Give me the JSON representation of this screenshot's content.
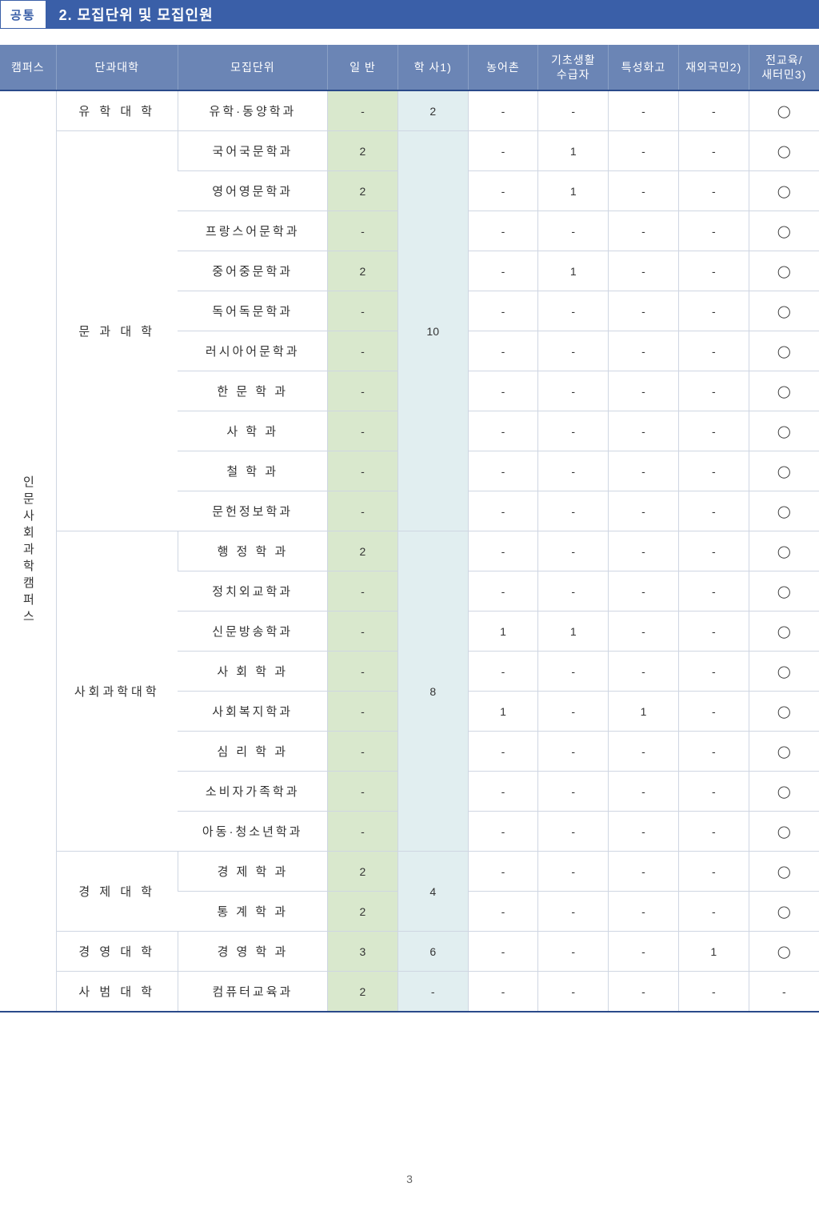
{
  "header": {
    "badge": "공통",
    "title": "2. 모집단위 및 모집인원"
  },
  "columns": [
    "캠퍼스",
    "단과대학",
    "모집단위",
    "일 반",
    "학 사1)",
    "농어촌",
    "기초생활\n수급자",
    "특성화고",
    "재외국민2)",
    "전교육/\n새터민3)"
  ],
  "campus": "인문사회과학캠퍼스",
  "colleges": [
    {
      "name": "유 학 대 학",
      "rowspan": 1,
      "depts": [
        {
          "name": "유학·동양학과",
          "general": "-",
          "haksa": "2",
          "haksa_span": 1,
          "rural": "-",
          "basic": "-",
          "spec": "-",
          "overseas": "-",
          "edu": "◯"
        }
      ]
    },
    {
      "name": "문 과 대 학",
      "rowspan": 10,
      "depts": [
        {
          "name": "국어국문학과",
          "general": "2",
          "haksa": "10",
          "haksa_span": 10,
          "rural": "-",
          "basic": "1",
          "spec": "-",
          "overseas": "-",
          "edu": "◯"
        },
        {
          "name": "영어영문학과",
          "general": "2",
          "rural": "-",
          "basic": "1",
          "spec": "-",
          "overseas": "-",
          "edu": "◯"
        },
        {
          "name": "프랑스어문학과",
          "general": "-",
          "rural": "-",
          "basic": "-",
          "spec": "-",
          "overseas": "-",
          "edu": "◯"
        },
        {
          "name": "중어중문학과",
          "general": "2",
          "rural": "-",
          "basic": "1",
          "spec": "-",
          "overseas": "-",
          "edu": "◯"
        },
        {
          "name": "독어독문학과",
          "general": "-",
          "rural": "-",
          "basic": "-",
          "spec": "-",
          "overseas": "-",
          "edu": "◯"
        },
        {
          "name": "러시아어문학과",
          "general": "-",
          "rural": "-",
          "basic": "-",
          "spec": "-",
          "overseas": "-",
          "edu": "◯"
        },
        {
          "name": "한 문 학 과",
          "general": "-",
          "rural": "-",
          "basic": "-",
          "spec": "-",
          "overseas": "-",
          "edu": "◯"
        },
        {
          "name": "사 학 과",
          "general": "-",
          "rural": "-",
          "basic": "-",
          "spec": "-",
          "overseas": "-",
          "edu": "◯"
        },
        {
          "name": "철 학 과",
          "general": "-",
          "rural": "-",
          "basic": "-",
          "spec": "-",
          "overseas": "-",
          "edu": "◯"
        },
        {
          "name": "문헌정보학과",
          "general": "-",
          "rural": "-",
          "basic": "-",
          "spec": "-",
          "overseas": "-",
          "edu": "◯"
        }
      ]
    },
    {
      "name": "사회과학대학",
      "rowspan": 8,
      "depts": [
        {
          "name": "행 정 학 과",
          "general": "2",
          "haksa": "8",
          "haksa_span": 8,
          "rural": "-",
          "basic": "-",
          "spec": "-",
          "overseas": "-",
          "edu": "◯"
        },
        {
          "name": "정치외교학과",
          "general": "-",
          "rural": "-",
          "basic": "-",
          "spec": "-",
          "overseas": "-",
          "edu": "◯"
        },
        {
          "name": "신문방송학과",
          "general": "-",
          "rural": "1",
          "basic": "1",
          "spec": "-",
          "overseas": "-",
          "edu": "◯"
        },
        {
          "name": "사 회 학 과",
          "general": "-",
          "rural": "-",
          "basic": "-",
          "spec": "-",
          "overseas": "-",
          "edu": "◯"
        },
        {
          "name": "사회복지학과",
          "general": "-",
          "rural": "1",
          "basic": "-",
          "spec": "1",
          "overseas": "-",
          "edu": "◯"
        },
        {
          "name": "심 리 학 과",
          "general": "-",
          "rural": "-",
          "basic": "-",
          "spec": "-",
          "overseas": "-",
          "edu": "◯"
        },
        {
          "name": "소비자가족학과",
          "general": "-",
          "rural": "-",
          "basic": "-",
          "spec": "-",
          "overseas": "-",
          "edu": "◯"
        },
        {
          "name": "아동·청소년학과",
          "general": "-",
          "rural": "-",
          "basic": "-",
          "spec": "-",
          "overseas": "-",
          "edu": "◯"
        }
      ]
    },
    {
      "name": "경 제 대 학",
      "rowspan": 2,
      "depts": [
        {
          "name": "경 제 학 과",
          "general": "2",
          "haksa": "4",
          "haksa_span": 2,
          "rural": "-",
          "basic": "-",
          "spec": "-",
          "overseas": "-",
          "edu": "◯"
        },
        {
          "name": "통 계 학 과",
          "general": "2",
          "rural": "-",
          "basic": "-",
          "spec": "-",
          "overseas": "-",
          "edu": "◯"
        }
      ]
    },
    {
      "name": "경 영 대 학",
      "rowspan": 1,
      "depts": [
        {
          "name": "경 영 학 과",
          "general": "3",
          "haksa": "6",
          "haksa_span": 1,
          "rural": "-",
          "basic": "-",
          "spec": "-",
          "overseas": "1",
          "edu": "◯"
        }
      ]
    },
    {
      "name": "사 범 대 학",
      "rowspan": 1,
      "depts": [
        {
          "name": "컴퓨터교육과",
          "general": "2",
          "haksa": "-",
          "haksa_span": 1,
          "rural": "-",
          "basic": "-",
          "spec": "-",
          "overseas": "-",
          "edu": "-"
        }
      ]
    }
  ],
  "page_number": "3",
  "colors": {
    "header_bg": "#6b85b5",
    "header_border": "#8aa0c5",
    "top_rule": "#2a4a8a",
    "cell_border": "#cfd6e2",
    "general_bg": "#d9e8cd",
    "haksa_bg": "#e1eef0",
    "title_bg": "#3a5fa8"
  }
}
